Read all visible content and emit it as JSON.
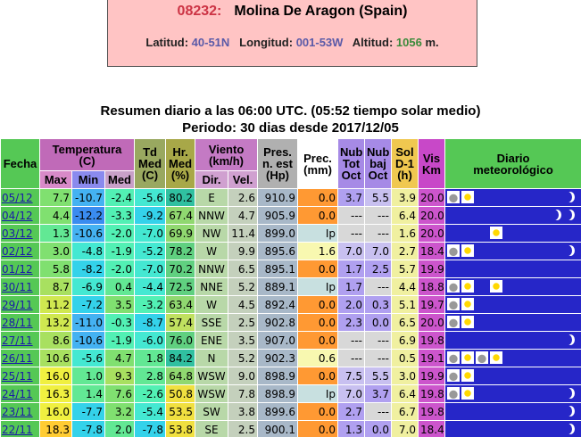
{
  "station": {
    "code": "08232:",
    "name": "Molina De Aragon (Spain)",
    "lat_label": "Latitud:",
    "lat": "40-51N",
    "lon_label": "Longitud:",
    "lon": "001-53W",
    "alt_label": "Altitud:",
    "alt": "1056",
    "alt_unit": "m."
  },
  "summary": {
    "line1": "Resumen diario a las 06:00 UTC. (05:52 tiempo solar medio)",
    "line2": "Periodo: 30 dias desde 2017/12/05"
  },
  "table": {
    "header_top": [
      [
        "Fecha"
      ],
      [
        "Temperatura",
        "(C)"
      ],
      [
        "Td",
        "Med",
        "(C)"
      ],
      [
        "Hr.",
        "Med",
        "(%)"
      ],
      [
        "Viento",
        "(km/h)"
      ],
      [
        "Pres.",
        "n. est",
        "(Hp)"
      ],
      [
        "Prec.",
        "(mm)"
      ],
      [
        "Nub",
        "Tot",
        "Oct"
      ],
      [
        "Nub",
        "baj",
        "Oct"
      ],
      [
        "Sol",
        "D-1",
        "(h)"
      ],
      [
        "Vis",
        "Km"
      ],
      [
        "Diario",
        "meteorológico"
      ]
    ],
    "header_sub": [
      "Max",
      "Min",
      "Med",
      "Dir.",
      "Vel."
    ],
    "rows": [
      [
        "05/12",
        "7.7",
        "-10.7",
        "-2.4",
        "-5.6",
        "80.2",
        "E",
        "2.6",
        "910.9",
        "0.0",
        "3.7",
        "5.5",
        "3.9",
        "20.0"
      ],
      [
        "04/12",
        "4.4",
        "-12.2",
        "-3.3",
        "-9.2",
        "67.4",
        "NNW",
        "4.7",
        "905.9",
        "0.0",
        "---",
        "---",
        "6.4",
        "20.0"
      ],
      [
        "03/12",
        "1.3",
        "-10.6",
        "-2.0",
        "-7.0",
        "69.9",
        "NW",
        "11.4",
        "899.0",
        "Ip",
        "---",
        "---",
        "1.6",
        "20.0"
      ],
      [
        "02/12",
        "3.0",
        "-4.8",
        "-1.9",
        "-5.2",
        "78.2",
        "W",
        "9.9",
        "895.6",
        "1.6",
        "7.0",
        "7.0",
        "2.7",
        "18.4"
      ],
      [
        "01/12",
        "5.8",
        "-8.2",
        "-2.0",
        "-7.0",
        "70.2",
        "NNW",
        "6.5",
        "895.1",
        "0.0",
        "1.7",
        "2.5",
        "5.7",
        "19.9"
      ],
      [
        "30/11",
        "8.7",
        "-6.9",
        "0.4",
        "-4.4",
        "72.5",
        "NNE",
        "5.2",
        "889.1",
        "Ip",
        "1.7",
        "---",
        "4.4",
        "18.8"
      ],
      [
        "29/11",
        "11.2",
        "-7.2",
        "3.5",
        "-3.2",
        "63.4",
        "W",
        "4.5",
        "892.4",
        "0.0",
        "2.0",
        "0.3",
        "5.1",
        "19.7"
      ],
      [
        "28/11",
        "13.2",
        "-11.0",
        "-0.3",
        "-8.7",
        "57.4",
        "SSE",
        "2.5",
        "902.8",
        "0.0",
        "2.3",
        "0.0",
        "6.5",
        "20.0"
      ],
      [
        "27/11",
        "8.6",
        "-10.6",
        "-1.9",
        "-6.0",
        "76.0",
        "ENE",
        "3.5",
        "907.0",
        "0.0",
        "---",
        "---",
        "6.9",
        "19.8"
      ],
      [
        "26/11",
        "10.6",
        "-5.6",
        "4.7",
        "1.8",
        "84.2",
        "N",
        "5.2",
        "902.3",
        "0.6",
        "---",
        "---",
        "0.5",
        "19.1"
      ],
      [
        "25/11",
        "16.0",
        "1.0",
        "9.3",
        "2.8",
        "64.8",
        "WSW",
        "9.0",
        "898.9",
        "0.0",
        "7.5",
        "5.5",
        "3.0",
        "19.9"
      ],
      [
        "24/11",
        "16.3",
        "1.4",
        "7.6",
        "-2.6",
        "50.8",
        "WSW",
        "7.8",
        "898.9",
        "Ip",
        "7.0",
        "3.7",
        "6.4",
        "19.8"
      ],
      [
        "23/11",
        "16.0",
        "-7.7",
        "3.2",
        "-5.4",
        "53.5",
        "SW",
        "3.8",
        "899.6",
        "0.0",
        "2.7",
        "---",
        "6.7",
        "19.8"
      ],
      [
        "22/11",
        "18.3",
        "-7.8",
        "2.0",
        "-7.8",
        "53.8",
        "SE",
        "2.5",
        "900.1",
        "0.0",
        "1.3",
        "0.0",
        "7.0",
        "18.4"
      ]
    ]
  }
}
